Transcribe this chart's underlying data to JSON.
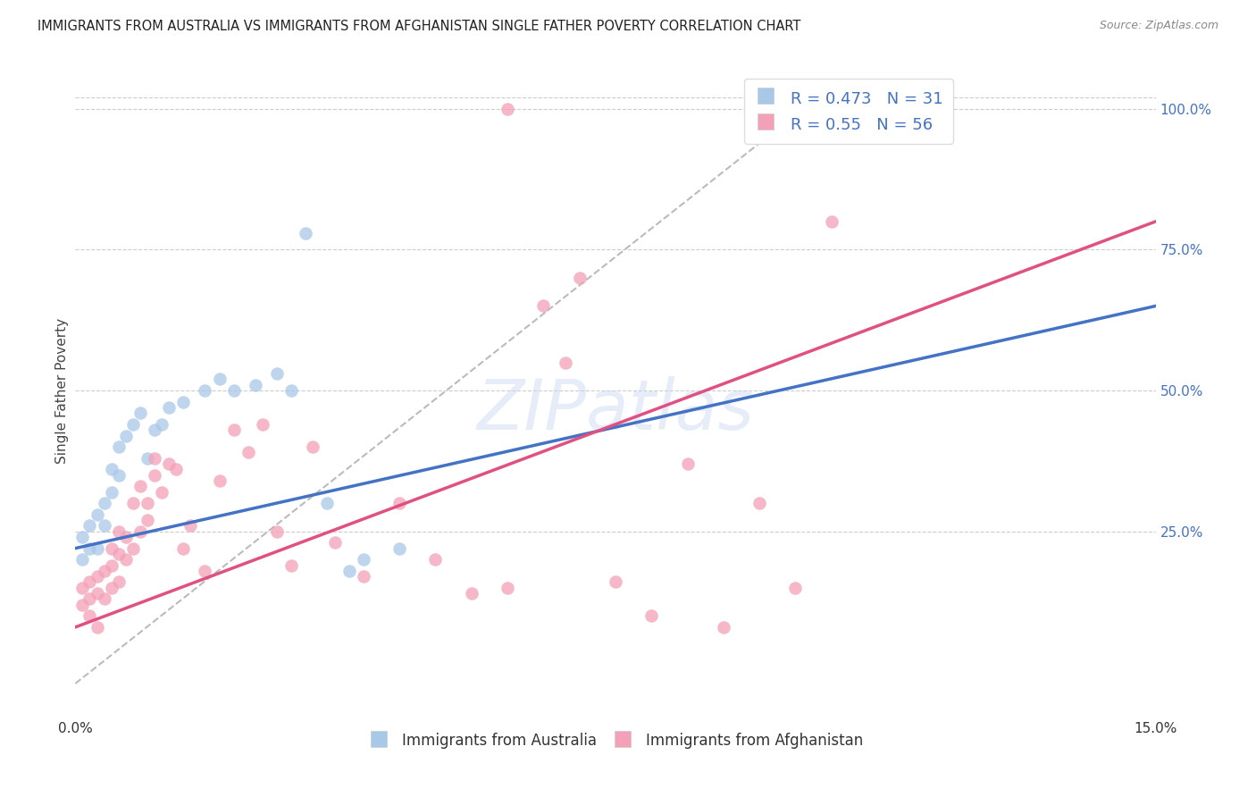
{
  "title": "IMMIGRANTS FROM AUSTRALIA VS IMMIGRANTS FROM AFGHANISTAN SINGLE FATHER POVERTY CORRELATION CHART",
  "source": "Source: ZipAtlas.com",
  "ylabel": "Single Father Poverty",
  "R_australia": 0.473,
  "N_australia": 31,
  "R_afghanistan": 0.55,
  "N_afghanistan": 56,
  "color_australia": "#a8c8e8",
  "color_afghanistan": "#f4a0b8",
  "color_australia_line": "#4472c4",
  "color_afghanistan_line": "#e05080",
  "color_diag": "#bbbbbb",
  "watermark": "ZIPatlas",
  "xlim": [
    0.0,
    0.15
  ],
  "ylim": [
    -0.08,
    1.08
  ],
  "x_tick_positions": [
    0.0,
    0.03,
    0.06,
    0.09,
    0.12,
    0.15
  ],
  "right_y_ticks": [
    0.25,
    0.5,
    0.75,
    1.0
  ],
  "right_y_labels": [
    "25.0%",
    "50.0%",
    "75.0%",
    "100.0%"
  ],
  "grid_color": "#cccccc",
  "background_color": "#ffffff",
  "australia_x": [
    0.001,
    0.001,
    0.002,
    0.002,
    0.003,
    0.003,
    0.004,
    0.004,
    0.005,
    0.005,
    0.006,
    0.006,
    0.007,
    0.008,
    0.009,
    0.01,
    0.011,
    0.012,
    0.013,
    0.015,
    0.018,
    0.02,
    0.022,
    0.025,
    0.028,
    0.03,
    0.032,
    0.035,
    0.038,
    0.04,
    0.045
  ],
  "australia_y": [
    0.2,
    0.24,
    0.22,
    0.26,
    0.22,
    0.28,
    0.26,
    0.3,
    0.32,
    0.36,
    0.35,
    0.4,
    0.42,
    0.44,
    0.46,
    0.38,
    0.43,
    0.44,
    0.47,
    0.48,
    0.5,
    0.52,
    0.5,
    0.51,
    0.53,
    0.5,
    0.78,
    0.3,
    0.18,
    0.2,
    0.22
  ],
  "afghanistan_x": [
    0.001,
    0.001,
    0.002,
    0.002,
    0.002,
    0.003,
    0.003,
    0.003,
    0.004,
    0.004,
    0.005,
    0.005,
    0.005,
    0.006,
    0.006,
    0.006,
    0.007,
    0.007,
    0.008,
    0.008,
    0.009,
    0.009,
    0.01,
    0.01,
    0.011,
    0.011,
    0.012,
    0.013,
    0.014,
    0.015,
    0.016,
    0.018,
    0.02,
    0.022,
    0.024,
    0.026,
    0.028,
    0.03,
    0.033,
    0.036,
    0.04,
    0.045,
    0.05,
    0.055,
    0.06,
    0.06,
    0.065,
    0.068,
    0.07,
    0.075,
    0.08,
    0.085,
    0.09,
    0.095,
    0.1,
    0.105
  ],
  "afghanistan_y": [
    0.15,
    0.12,
    0.1,
    0.13,
    0.16,
    0.14,
    0.17,
    0.08,
    0.13,
    0.18,
    0.15,
    0.19,
    0.22,
    0.16,
    0.21,
    0.25,
    0.2,
    0.24,
    0.22,
    0.3,
    0.25,
    0.33,
    0.27,
    0.3,
    0.35,
    0.38,
    0.32,
    0.37,
    0.36,
    0.22,
    0.26,
    0.18,
    0.34,
    0.43,
    0.39,
    0.44,
    0.25,
    0.19,
    0.4,
    0.23,
    0.17,
    0.3,
    0.2,
    0.14,
    0.15,
    1.0,
    0.65,
    0.55,
    0.7,
    0.16,
    0.1,
    0.37,
    0.08,
    0.3,
    0.15,
    0.8
  ]
}
